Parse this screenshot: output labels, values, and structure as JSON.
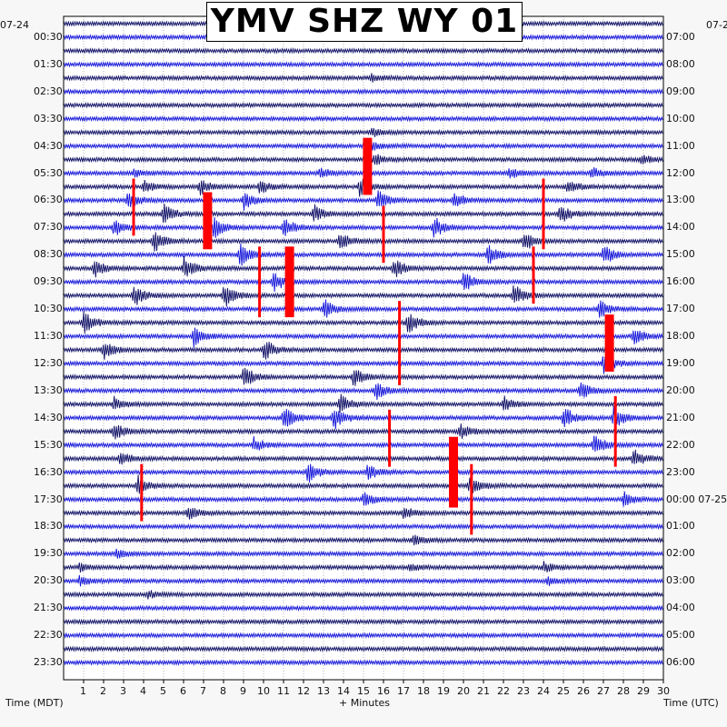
{
  "chart_data": {
    "type": "line",
    "title": "YMV SHZ WY 01",
    "xlabel": "+ Minutes",
    "ylabel_left": "Time (MDT)",
    "ylabel_right": "Time (UTC)",
    "date_left": "07-24",
    "date_right_top": "07-2",
    "date_right_mid": "07-25",
    "x_ticks": [
      "1",
      "2",
      "3",
      "4",
      "5",
      "6",
      "7",
      "8",
      "9",
      "10",
      "11",
      "12",
      "13",
      "14",
      "15",
      "16",
      "17",
      "18",
      "19",
      "20",
      "21",
      "22",
      "23",
      "24",
      "25",
      "26",
      "27",
      "28",
      "29",
      "30"
    ],
    "xlim": [
      0,
      30
    ],
    "left_labels": [
      "00:30",
      "01:30",
      "02:30",
      "03:30",
      "04:30",
      "05:30",
      "06:30",
      "07:30",
      "08:30",
      "09:30",
      "10:30",
      "11:30",
      "12:30",
      "13:30",
      "14:30",
      "15:30",
      "16:30",
      "17:30",
      "18:30",
      "19:30",
      "20:30",
      "21:30",
      "22:30",
      "23:30"
    ],
    "right_labels": [
      "07:00",
      "08:00",
      "09:00",
      "10:00",
      "11:00",
      "12:00",
      "13:00",
      "14:00",
      "15:00",
      "16:00",
      "17:00",
      "18:00",
      "19:00",
      "20:00",
      "21:00",
      "22:00",
      "23:00",
      "00:00",
      "01:00",
      "02:00",
      "03:00",
      "04:00",
      "05:00",
      "06:00"
    ],
    "trace_count": 48,
    "trace_colors": [
      "#0b0b63",
      "#0f10d8"
    ],
    "clip_color": "#ff0000",
    "bursts": [
      {
        "trace": 4,
        "minute": 15.4,
        "amp": 3
      },
      {
        "trace": 8,
        "minute": 15.4,
        "amp": 3.5
      },
      {
        "trace": 9,
        "minute": 15.3,
        "amp": 4
      },
      {
        "trace": 10,
        "minute": 15.5,
        "amp": 5
      },
      {
        "trace": 10,
        "minute": 28.9,
        "amp": 4
      },
      {
        "trace": 11,
        "minute": 3.5,
        "amp": 3
      },
      {
        "trace": 11,
        "minute": 12.8,
        "amp": 4
      },
      {
        "trace": 11,
        "minute": 22.3,
        "amp": 4
      },
      {
        "trace": 11,
        "minute": 26.4,
        "amp": 5
      },
      {
        "trace": 12,
        "minute": 4.0,
        "amp": 5
      },
      {
        "trace": 12,
        "minute": 6.8,
        "amp": 6
      },
      {
        "trace": 12,
        "minute": 9.8,
        "amp": 6
      },
      {
        "trace": 12,
        "minute": 14.8,
        "amp": 7
      },
      {
        "trace": 12,
        "minute": 25.2,
        "amp": 6
      },
      {
        "trace": 13,
        "minute": 3.2,
        "amp": 7
      },
      {
        "trace": 13,
        "minute": 9.0,
        "amp": 7
      },
      {
        "trace": 13,
        "minute": 15.7,
        "amp": 8
      },
      {
        "trace": 13,
        "minute": 19.5,
        "amp": 7
      },
      {
        "trace": 14,
        "minute": 5.0,
        "amp": 8
      },
      {
        "trace": 14,
        "minute": 12.5,
        "amp": 7
      },
      {
        "trace": 14,
        "minute": 24.8,
        "amp": 8
      },
      {
        "trace": 15,
        "minute": 2.5,
        "amp": 8
      },
      {
        "trace": 15,
        "minute": 7.5,
        "amp": 9
      },
      {
        "trace": 15,
        "minute": 11.0,
        "amp": 8
      },
      {
        "trace": 15,
        "minute": 18.5,
        "amp": 9
      },
      {
        "trace": 16,
        "minute": 4.5,
        "amp": 9
      },
      {
        "trace": 16,
        "minute": 13.8,
        "amp": 8
      },
      {
        "trace": 16,
        "minute": 23.0,
        "amp": 9
      },
      {
        "trace": 17,
        "minute": 8.8,
        "amp": 9
      },
      {
        "trace": 17,
        "minute": 21.2,
        "amp": 8
      },
      {
        "trace": 17,
        "minute": 27.0,
        "amp": 8
      },
      {
        "trace": 18,
        "minute": 1.5,
        "amp": 8
      },
      {
        "trace": 18,
        "minute": 6.0,
        "amp": 9
      },
      {
        "trace": 18,
        "minute": 16.5,
        "amp": 8
      },
      {
        "trace": 19,
        "minute": 10.5,
        "amp": 9
      },
      {
        "trace": 19,
        "minute": 20.0,
        "amp": 8
      },
      {
        "trace": 20,
        "minute": 3.5,
        "amp": 9
      },
      {
        "trace": 20,
        "minute": 8.0,
        "amp": 10
      },
      {
        "trace": 20,
        "minute": 22.5,
        "amp": 9
      },
      {
        "trace": 21,
        "minute": 13.0,
        "amp": 8
      },
      {
        "trace": 21,
        "minute": 26.8,
        "amp": 8
      },
      {
        "trace": 22,
        "minute": 1.0,
        "amp": 9
      },
      {
        "trace": 22,
        "minute": 17.2,
        "amp": 9
      },
      {
        "trace": 23,
        "minute": 6.5,
        "amp": 8
      },
      {
        "trace": 23,
        "minute": 28.5,
        "amp": 9
      },
      {
        "trace": 24,
        "minute": 2.0,
        "amp": 8
      },
      {
        "trace": 24,
        "minute": 10.0,
        "amp": 9
      },
      {
        "trace": 25,
        "minute": 27.0,
        "amp": 9
      },
      {
        "trace": 26,
        "minute": 9.0,
        "amp": 9
      },
      {
        "trace": 26,
        "minute": 14.5,
        "amp": 8
      },
      {
        "trace": 27,
        "minute": 15.6,
        "amp": 7
      },
      {
        "trace": 27,
        "minute": 25.8,
        "amp": 8
      },
      {
        "trace": 28,
        "minute": 2.5,
        "amp": 6
      },
      {
        "trace": 28,
        "minute": 13.8,
        "amp": 8
      },
      {
        "trace": 28,
        "minute": 22.0,
        "amp": 6
      },
      {
        "trace": 29,
        "minute": 11.0,
        "amp": 10
      },
      {
        "trace": 29,
        "minute": 13.5,
        "amp": 10
      },
      {
        "trace": 29,
        "minute": 25.0,
        "amp": 9
      },
      {
        "trace": 29,
        "minute": 27.5,
        "amp": 9
      },
      {
        "trace": 30,
        "minute": 2.5,
        "amp": 7
      },
      {
        "trace": 30,
        "minute": 19.8,
        "amp": 7
      },
      {
        "trace": 31,
        "minute": 26.5,
        "amp": 9
      },
      {
        "trace": 31,
        "minute": 9.5,
        "amp": 6
      },
      {
        "trace": 32,
        "minute": 2.8,
        "amp": 6
      },
      {
        "trace": 32,
        "minute": 28.5,
        "amp": 8
      },
      {
        "trace": 33,
        "minute": 12.2,
        "amp": 8
      },
      {
        "trace": 33,
        "minute": 15.2,
        "amp": 6
      },
      {
        "trace": 34,
        "minute": 3.7,
        "amp": 8
      },
      {
        "trace": 34,
        "minute": 20.3,
        "amp": 8
      },
      {
        "trace": 35,
        "minute": 15.0,
        "amp": 6
      },
      {
        "trace": 35,
        "minute": 28.0,
        "amp": 6
      },
      {
        "trace": 36,
        "minute": 6.2,
        "amp": 6
      },
      {
        "trace": 36,
        "minute": 17.0,
        "amp": 5
      },
      {
        "trace": 38,
        "minute": 17.5,
        "amp": 4
      },
      {
        "trace": 39,
        "minute": 2.6,
        "amp": 4
      },
      {
        "trace": 40,
        "minute": 0.8,
        "amp": 3
      },
      {
        "trace": 40,
        "minute": 17.3,
        "amp": 3
      },
      {
        "trace": 40,
        "minute": 24.0,
        "amp": 4
      },
      {
        "trace": 41,
        "minute": 0.8,
        "amp": 4
      },
      {
        "trace": 41,
        "minute": 24.2,
        "amp": 3
      },
      {
        "trace": 42,
        "minute": 4.2,
        "amp": 3.5
      }
    ],
    "clipped_events": [
      {
        "trace": 9,
        "minute": 15.2,
        "span": 3
      },
      {
        "trace": 12,
        "minute": 3.5,
        "span": 3
      },
      {
        "trace": 12,
        "minute": 24.0,
        "span": 4
      },
      {
        "trace": 13,
        "minute": 7.2,
        "span": 3
      },
      {
        "trace": 14,
        "minute": 16.0,
        "span": 3
      },
      {
        "trace": 17,
        "minute": 9.8,
        "span": 4
      },
      {
        "trace": 17,
        "minute": 11.3,
        "span": 4
      },
      {
        "trace": 17,
        "minute": 23.5,
        "span": 3
      },
      {
        "trace": 21,
        "minute": 16.8,
        "span": 5
      },
      {
        "trace": 22,
        "minute": 27.3,
        "span": 3
      },
      {
        "trace": 28,
        "minute": 27.6,
        "span": 4
      },
      {
        "trace": 29,
        "minute": 16.3,
        "span": 3
      },
      {
        "trace": 31,
        "minute": 19.5,
        "span": 4
      },
      {
        "trace": 33,
        "minute": 20.4,
        "span": 4
      },
      {
        "trace": 33,
        "minute": 3.9,
        "span": 3
      }
    ]
  }
}
